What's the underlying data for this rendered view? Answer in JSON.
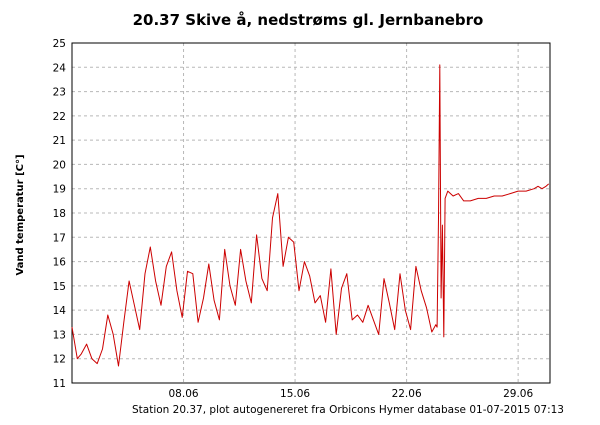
{
  "chart_data": {
    "type": "line",
    "title": "20.37 Skive å, nedstrøms gl. Jernbanebro",
    "ylabel": "Vand temperatur [C°]",
    "xlabel": "",
    "x_range": [
      "2015-07-01",
      "2015-07-01"
    ],
    "x_start": "2015-06-01",
    "x_end": "2015-07-01",
    "ylim": [
      11,
      25
    ],
    "y_ticks": [
      11,
      12,
      13,
      14,
      15,
      16,
      17,
      18,
      19,
      20,
      21,
      22,
      23,
      24,
      25
    ],
    "x_ticks": [
      {
        "date": "2015-06-08",
        "label": "08.06"
      },
      {
        "date": "2015-06-15",
        "label": "15.06"
      },
      {
        "date": "2015-06-22",
        "label": "22.06"
      },
      {
        "date": "2015-06-29",
        "label": "29.06"
      }
    ],
    "grid": true,
    "footer": "Station 20.37, plot autogenereret fra Orbicons Hymer database 01-07-2015 07:13",
    "series": [
      {
        "color": "#cc0000",
        "x": [
          "2015-06-01 00:00",
          "2015-06-01 08:00",
          "2015-06-01 14:00",
          "2015-06-01 22:00",
          "2015-06-02 06:00",
          "2015-06-02 14:00",
          "2015-06-02 22:00",
          "2015-06-03 06:00",
          "2015-06-03 14:00",
          "2015-06-03 22:00",
          "2015-06-04 06:00",
          "2015-06-04 14:00",
          "2015-06-04 22:00",
          "2015-06-05 06:00",
          "2015-06-05 14:00",
          "2015-06-05 22:00",
          "2015-06-06 06:00",
          "2015-06-06 14:00",
          "2015-06-06 22:00",
          "2015-06-07 06:00",
          "2015-06-07 14:00",
          "2015-06-07 22:00",
          "2015-06-08 06:00",
          "2015-06-08 14:00",
          "2015-06-08 22:00",
          "2015-06-09 06:00",
          "2015-06-09 14:00",
          "2015-06-09 22:00",
          "2015-06-10 06:00",
          "2015-06-10 14:00",
          "2015-06-10 22:00",
          "2015-06-11 06:00",
          "2015-06-11 14:00",
          "2015-06-11 22:00",
          "2015-06-12 06:00",
          "2015-06-12 14:00",
          "2015-06-12 22:00",
          "2015-06-13 06:00",
          "2015-06-13 14:00",
          "2015-06-13 22:00",
          "2015-06-14 06:00",
          "2015-06-14 14:00",
          "2015-06-14 22:00",
          "2015-06-15 06:00",
          "2015-06-15 14:00",
          "2015-06-15 22:00",
          "2015-06-16 06:00",
          "2015-06-16 14:00",
          "2015-06-16 22:00",
          "2015-06-17 06:00",
          "2015-06-17 14:00",
          "2015-06-17 22:00",
          "2015-06-18 06:00",
          "2015-06-18 14:00",
          "2015-06-18 22:00",
          "2015-06-19 06:00",
          "2015-06-19 14:00",
          "2015-06-19 22:00",
          "2015-06-20 06:00",
          "2015-06-20 14:00",
          "2015-06-20 22:00",
          "2015-06-21 06:00",
          "2015-06-21 14:00",
          "2015-06-21 22:00",
          "2015-06-22 06:00",
          "2015-06-22 14:00",
          "2015-06-22 22:00",
          "2015-06-23 06:00",
          "2015-06-23 14:00",
          "2015-06-23 20:00",
          "2015-06-23 22:00",
          "2015-06-24 00:00",
          "2015-06-24 02:00",
          "2015-06-24 04:00",
          "2015-06-24 06:00",
          "2015-06-24 08:00",
          "2015-06-24 10:00",
          "2015-06-24 14:00",
          "2015-06-24 22:00",
          "2015-06-25 06:00",
          "2015-06-25 14:00",
          "2015-06-26 00:00",
          "2015-06-26 12:00",
          "2015-06-27 00:00",
          "2015-06-27 12:00",
          "2015-06-28 00:00",
          "2015-06-28 12:00",
          "2015-06-29 00:00",
          "2015-06-29 12:00",
          "2015-06-30 00:00",
          "2015-06-30 06:00",
          "2015-06-30 12:00",
          "2015-06-30 18:00",
          "2015-06-30 22:00"
        ],
        "y": [
          13.3,
          12.0,
          12.2,
          12.6,
          12.0,
          11.8,
          12.4,
          13.8,
          13.0,
          11.7,
          13.5,
          15.2,
          14.2,
          13.2,
          15.5,
          16.6,
          15.2,
          14.2,
          15.8,
          16.4,
          14.8,
          13.7,
          15.6,
          15.5,
          13.5,
          14.5,
          15.9,
          14.4,
          13.6,
          16.5,
          15.0,
          14.2,
          16.5,
          15.2,
          14.3,
          17.1,
          15.3,
          14.8,
          17.8,
          18.8,
          15.8,
          17.0,
          16.8,
          14.8,
          16.0,
          15.4,
          14.3,
          14.6,
          13.5,
          15.7,
          13.0,
          14.9,
          15.5,
          13.6,
          13.8,
          13.5,
          14.2,
          13.6,
          13.0,
          15.3,
          14.3,
          13.2,
          15.5,
          14.0,
          13.2,
          15.8,
          14.8,
          14.1,
          13.1,
          13.4,
          13.3,
          17.8,
          24.1,
          14.5,
          17.5,
          12.9,
          18.6,
          18.9,
          18.7,
          18.8,
          18.5,
          18.5,
          18.6,
          18.6,
          18.7,
          18.7,
          18.8,
          18.9,
          18.9,
          19.0,
          19.1,
          19.0,
          19.1,
          19.2
        ]
      }
    ]
  }
}
